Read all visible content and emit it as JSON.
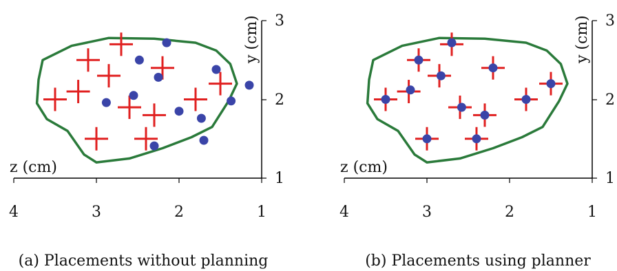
{
  "figure_colors": {
    "boundary": "#2a7a3a",
    "target_marker": "#e02020",
    "placement_marker": "#3a44a8",
    "axis": "#000000"
  },
  "chart_data": [
    {
      "type": "scatter",
      "caption": "(a) Placements without planning",
      "xlabel": "z (cm)",
      "ylabel": "y (cm)",
      "xlim": [
        4,
        1
      ],
      "ylim": [
        1,
        3
      ],
      "xticks": [
        "4",
        "3",
        "2",
        "1"
      ],
      "yticks": [
        "1",
        "2",
        "3"
      ],
      "boundary": [
        [
          3.65,
          2.5
        ],
        [
          3.3,
          2.68
        ],
        [
          2.85,
          2.78
        ],
        [
          2.3,
          2.77
        ],
        [
          1.8,
          2.72
        ],
        [
          1.55,
          2.62
        ],
        [
          1.38,
          2.45
        ],
        [
          1.3,
          2.2
        ],
        [
          1.4,
          1.98
        ],
        [
          1.6,
          1.65
        ],
        [
          1.85,
          1.52
        ],
        [
          2.2,
          1.38
        ],
        [
          2.6,
          1.25
        ],
        [
          3.0,
          1.2
        ],
        [
          3.15,
          1.3
        ],
        [
          3.35,
          1.6
        ],
        [
          3.6,
          1.75
        ],
        [
          3.72,
          1.95
        ],
        [
          3.7,
          2.25
        ]
      ],
      "targets": [
        [
          2.7,
          2.7
        ],
        [
          3.1,
          2.5
        ],
        [
          2.85,
          2.3
        ],
        [
          2.2,
          2.4
        ],
        [
          3.22,
          2.1
        ],
        [
          3.5,
          2.0
        ],
        [
          2.6,
          1.9
        ],
        [
          2.3,
          1.8
        ],
        [
          1.8,
          2.0
        ],
        [
          1.5,
          2.2
        ],
        [
          3.0,
          1.5
        ],
        [
          2.4,
          1.5
        ]
      ],
      "placements": [
        [
          2.15,
          2.72
        ],
        [
          2.48,
          2.5
        ],
        [
          1.55,
          2.38
        ],
        [
          2.25,
          2.28
        ],
        [
          1.15,
          2.18
        ],
        [
          2.55,
          2.05
        ],
        [
          1.37,
          1.98
        ],
        [
          2.88,
          1.96
        ],
        [
          2.0,
          1.85
        ],
        [
          1.73,
          1.76
        ],
        [
          1.7,
          1.48
        ],
        [
          2.3,
          1.41
        ]
      ]
    },
    {
      "type": "scatter",
      "caption": "(b) Placements using planner",
      "xlabel": "z (cm)",
      "ylabel": "y (cm)",
      "xlim": [
        4,
        1
      ],
      "ylim": [
        1,
        3
      ],
      "xticks": [
        "4",
        "3",
        "2",
        "1"
      ],
      "yticks": [
        "1",
        "2",
        "3"
      ],
      "boundary": [
        [
          3.65,
          2.5
        ],
        [
          3.3,
          2.68
        ],
        [
          2.85,
          2.78
        ],
        [
          2.3,
          2.77
        ],
        [
          1.8,
          2.72
        ],
        [
          1.55,
          2.62
        ],
        [
          1.38,
          2.45
        ],
        [
          1.3,
          2.2
        ],
        [
          1.4,
          1.98
        ],
        [
          1.6,
          1.65
        ],
        [
          1.85,
          1.52
        ],
        [
          2.2,
          1.38
        ],
        [
          2.6,
          1.25
        ],
        [
          3.0,
          1.2
        ],
        [
          3.15,
          1.3
        ],
        [
          3.35,
          1.6
        ],
        [
          3.6,
          1.75
        ],
        [
          3.72,
          1.95
        ],
        [
          3.7,
          2.25
        ]
      ],
      "targets": [
        [
          2.7,
          2.7
        ],
        [
          3.1,
          2.5
        ],
        [
          2.85,
          2.3
        ],
        [
          2.2,
          2.4
        ],
        [
          3.22,
          2.1
        ],
        [
          3.5,
          2.0
        ],
        [
          2.6,
          1.9
        ],
        [
          2.3,
          1.8
        ],
        [
          1.8,
          2.0
        ],
        [
          1.5,
          2.2
        ],
        [
          3.0,
          1.5
        ],
        [
          2.4,
          1.5
        ]
      ],
      "placements": [
        [
          2.7,
          2.72
        ],
        [
          3.1,
          2.5
        ],
        [
          2.83,
          2.3
        ],
        [
          2.2,
          2.4
        ],
        [
          3.2,
          2.12
        ],
        [
          3.5,
          2.0
        ],
        [
          2.58,
          1.9
        ],
        [
          2.3,
          1.8
        ],
        [
          1.8,
          2.0
        ],
        [
          1.5,
          2.2
        ],
        [
          3.0,
          1.5
        ],
        [
          2.4,
          1.5
        ]
      ]
    }
  ]
}
